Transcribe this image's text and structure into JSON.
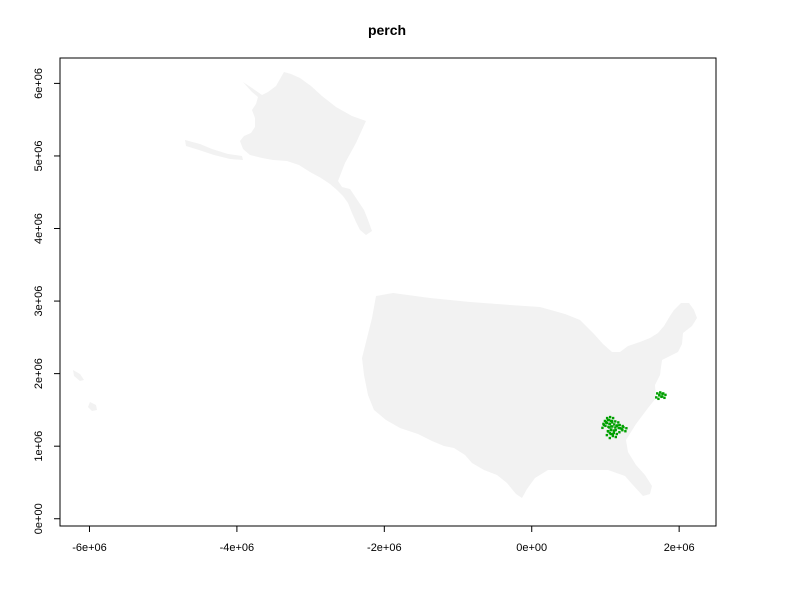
{
  "title": "perch",
  "colors": {
    "land": "#f2f2f2",
    "presence": "#00a000",
    "axis": "#000000"
  },
  "chart_data": {
    "type": "map",
    "title": "perch",
    "xlabel": "",
    "ylabel": "",
    "xlim": [
      -6400000,
      2500000
    ],
    "ylim": [
      -100000,
      6350000
    ],
    "x_ticks": [
      {
        "value": -6000000,
        "label": "-6e+06"
      },
      {
        "value": -4000000,
        "label": "-4e+06"
      },
      {
        "value": -2000000,
        "label": "-2e+06"
      },
      {
        "value": 0,
        "label": "0e+00"
      },
      {
        "value": 2000000,
        "label": "2e+06"
      }
    ],
    "y_ticks": [
      {
        "value": 0,
        "label": "0e+00"
      },
      {
        "value": 1000000,
        "label": "1e+06"
      },
      {
        "value": 2000000,
        "label": "2e+06"
      },
      {
        "value": 3000000,
        "label": "3e+06"
      },
      {
        "value": 4000000,
        "label": "4e+06"
      },
      {
        "value": 5000000,
        "label": "5e+06"
      },
      {
        "value": 6000000,
        "label": "6e+06"
      }
    ],
    "presence_clusters": [
      {
        "x": 1020000,
        "y": 1320000
      },
      {
        "x": 1050000,
        "y": 1360000
      },
      {
        "x": 1000000,
        "y": 1280000
      },
      {
        "x": 1080000,
        "y": 1230000
      },
      {
        "x": 1120000,
        "y": 1300000
      },
      {
        "x": 1180000,
        "y": 1250000
      },
      {
        "x": 1230000,
        "y": 1220000
      },
      {
        "x": 1060000,
        "y": 1180000
      },
      {
        "x": 1100000,
        "y": 1140000
      },
      {
        "x": 1730000,
        "y": 1700000
      },
      {
        "x": 1760000,
        "y": 1680000
      }
    ]
  }
}
